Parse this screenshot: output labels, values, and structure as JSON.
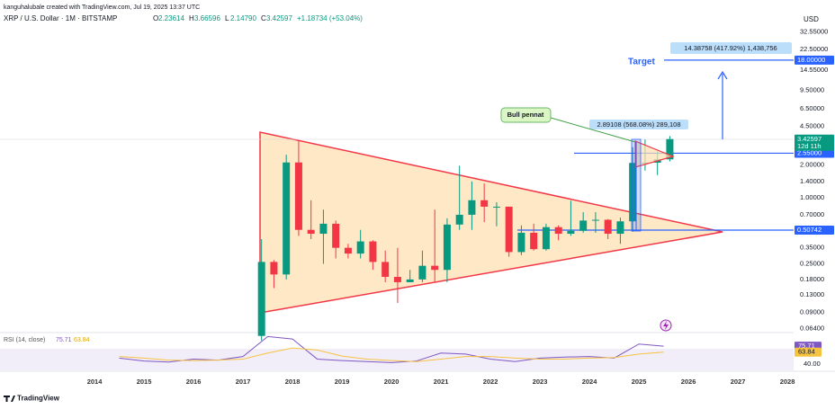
{
  "header": {
    "attribution": "kanguhalubale created with TradingView.com, Jul 19, 2025 13:37 UTC",
    "symbol": "XRP / U.S. Dollar · 1M · BITSTAMP",
    "ohlc": [
      {
        "key": "O",
        "value": "2.23614"
      },
      {
        "key": "H",
        "value": "3.66596"
      },
      {
        "key": "L",
        "value": "2.14790"
      },
      {
        "key": "C",
        "value": "3.42597"
      }
    ],
    "change": "+1.18734 (+53.04%)"
  },
  "footer": {
    "brand": "TradingView"
  },
  "chart_data": [
    {
      "type": "candlestick",
      "currency": "USD",
      "log_scale": true,
      "grid": false,
      "up_color": "#089981",
      "down_color": "#f23645",
      "x": [
        2017.375,
        2017.625,
        2017.875,
        2018.125,
        2018.375,
        2018.625,
        2018.875,
        2019.125,
        2019.375,
        2019.625,
        2019.875,
        2020.125,
        2020.375,
        2020.625,
        2020.875,
        2021.125,
        2021.375,
        2021.625,
        2021.875,
        2022.125,
        2022.375,
        2022.625,
        2022.875,
        2023.125,
        2023.375,
        2023.625,
        2023.875,
        2024.125,
        2024.375,
        2024.625,
        2024.875,
        2025.125,
        2025.375,
        2025.625
      ],
      "open": [
        0.055,
        0.26,
        0.2,
        2.1,
        0.51,
        0.47,
        0.58,
        0.35,
        0.31,
        0.4,
        0.26,
        0.19,
        0.17,
        0.18,
        0.24,
        0.22,
        0.57,
        0.7,
        0.95,
        0.83,
        0.83,
        0.32,
        0.48,
        0.34,
        0.54,
        0.47,
        0.5,
        0.62,
        0.63,
        0.47,
        0.61,
        2.08,
        2.09,
        2.24
      ],
      "high": [
        0.42,
        0.27,
        2.47,
        3.3,
        0.95,
        0.78,
        0.62,
        0.38,
        0.51,
        0.41,
        0.33,
        0.35,
        0.22,
        0.33,
        0.78,
        0.65,
        1.96,
        1.41,
        1.35,
        0.91,
        0.83,
        0.56,
        0.58,
        0.58,
        0.56,
        0.94,
        0.74,
        0.74,
        0.64,
        0.66,
        2.9,
        3.4,
        2.65,
        3.66
      ],
      "low": [
        0.05,
        0.15,
        0.18,
        0.45,
        0.42,
        0.25,
        0.28,
        0.28,
        0.28,
        0.22,
        0.17,
        0.11,
        0.17,
        0.17,
        0.17,
        0.17,
        0.51,
        0.51,
        0.6,
        0.55,
        0.29,
        0.3,
        0.33,
        0.33,
        0.41,
        0.45,
        0.48,
        0.48,
        0.42,
        0.38,
        0.49,
        1.77,
        1.61,
        2.15
      ],
      "close": [
        0.26,
        0.2,
        2.1,
        0.51,
        0.47,
        0.58,
        0.35,
        0.31,
        0.4,
        0.26,
        0.19,
        0.17,
        0.18,
        0.24,
        0.22,
        0.57,
        0.7,
        0.95,
        0.83,
        0.83,
        0.32,
        0.48,
        0.34,
        0.54,
        0.47,
        0.5,
        0.62,
        0.63,
        0.47,
        0.61,
        2.08,
        2.09,
        2.24,
        3.43
      ],
      "xlim": [
        2012.09,
        2028.09
      ],
      "xticks": [
        2014,
        2015,
        2016,
        2017,
        2018,
        2019,
        2020,
        2021,
        2022,
        2023,
        2024,
        2025,
        2026,
        2027,
        2028
      ],
      "ylim": [
        0.059,
        37.5
      ],
      "yticks": [
        {
          "value": 32.55,
          "label": "32.55000"
        },
        {
          "value": 22.5,
          "label": "22.50000"
        },
        {
          "value": 14.55,
          "label": "14.55000"
        },
        {
          "value": 9.5,
          "label": "9.50000"
        },
        {
          "value": 6.5,
          "label": "6.50000"
        },
        {
          "value": 4.5,
          "label": "4.50000"
        },
        {
          "value": 2,
          "label": "2.00000"
        },
        {
          "value": 1.4,
          "label": "1.40000"
        },
        {
          "value": 1,
          "label": "1.00000"
        },
        {
          "value": 0.7,
          "label": "0.70000"
        },
        {
          "value": 0.35,
          "label": "0.35000"
        },
        {
          "value": 0.25,
          "label": "0.25000"
        },
        {
          "value": 0.18,
          "label": "0.18000"
        },
        {
          "value": 0.13,
          "label": "0.13000"
        },
        {
          "value": 0.09,
          "label": "0.09000"
        },
        {
          "value": 0.064,
          "label": "0.06400"
        }
      ],
      "price_levels": [
        {
          "value": 18,
          "label": "18.00000",
          "color": "#2962ff"
        },
        {
          "value": 2.55,
          "label": "2.55000",
          "color": "#2962ff"
        },
        {
          "value": 0.50742,
          "label": "0.50742",
          "color": "#2962ff"
        }
      ],
      "last_price": {
        "value": 3.42597,
        "label": "3.42597",
        "countdown": "12d 11h",
        "color": "#089981"
      },
      "annotations": {
        "target": "Target",
        "pennant": "Bull pennat",
        "measure_small": "2.89108 (568.08%) 289,108",
        "measure_big": "14.38758 (417.92%) 1,438,756"
      }
    },
    {
      "type": "line",
      "title": "RSI (14, close)",
      "x": [
        2014.5,
        2015,
        2015.5,
        2016,
        2016.5,
        2017,
        2017.5,
        2018,
        2018.5,
        2019,
        2019.5,
        2020,
        2020.5,
        2021,
        2021.5,
        2022,
        2022.5,
        2023,
        2023.5,
        2024,
        2024.5,
        2025,
        2025.5
      ],
      "series": [
        {
          "name": "RSI",
          "color": "#7e57c2",
          "values": [
            52,
            46,
            44,
            50,
            48,
            55,
            95,
            90,
            50,
            47,
            45,
            43,
            46,
            62,
            60,
            50,
            45,
            52,
            54,
            55,
            52,
            80,
            75.71
          ]
        },
        {
          "color": "#f5c242",
          "values": [
            55,
            52,
            48,
            47,
            48,
            50,
            62,
            72,
            68,
            56,
            50,
            47,
            45,
            50,
            55,
            55,
            52,
            50,
            50,
            52,
            53,
            60,
            63.84
          ]
        }
      ],
      "xlim": [
        2012.09,
        2028.09
      ],
      "ylim": [
        27.5,
        101
      ],
      "yticks": [
        {
          "value": 40,
          "label": "40.00"
        }
      ]
    }
  ]
}
